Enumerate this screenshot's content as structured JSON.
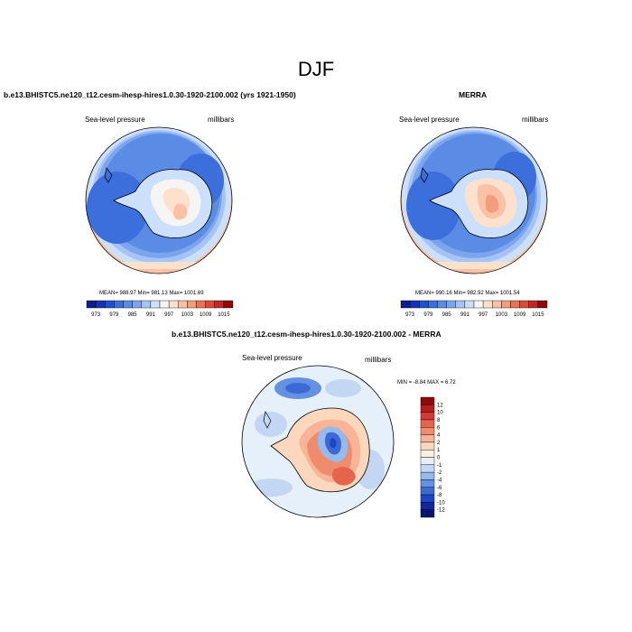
{
  "page_title": "DJF",
  "chart_data": [
    {
      "type": "heatmap",
      "title": "b.e13.BHISTC5.ne120_t12.cesm-ihesp-hires1.0.30-1920-2100.002 (yrs 1921-1950)",
      "left_label": "Sea-level pressure",
      "right_label": "millibars",
      "stats": "MEAN= 988.97   Min= 981.13   Max= 1001.69",
      "colorbar": {
        "orientation": "horizontal",
        "tick_labels": [
          "973",
          "979",
          "985",
          "991",
          "997",
          "1003",
          "1009",
          "1015"
        ],
        "colors": [
          "#0a1e8c",
          "#1432b4",
          "#1e50d2",
          "#3c6edc",
          "#5a8ce6",
          "#7da5ee",
          "#a5c3f5",
          "#cde0fb",
          "#f5f5f5",
          "#fde1cd",
          "#f9c1a5",
          "#f29d7c",
          "#e8735a",
          "#d94a3a",
          "#bf2828",
          "#8c0a0a"
        ],
        "unit": "millibars"
      }
    },
    {
      "type": "heatmap",
      "title": "MERRA",
      "left_label": "Sea-level pressure",
      "right_label": "millibars",
      "stats": "MEAN= 990.16   Min= 982.92   Max= 1001.54",
      "colorbar": {
        "orientation": "horizontal",
        "tick_labels": [
          "973",
          "979",
          "985",
          "991",
          "997",
          "1003",
          "1009",
          "1015"
        ],
        "colors": [
          "#0a1e8c",
          "#1432b4",
          "#1e50d2",
          "#3c6edc",
          "#5a8ce6",
          "#7da5ee",
          "#a5c3f5",
          "#cde0fb",
          "#f5f5f5",
          "#fde1cd",
          "#f9c1a5",
          "#f29d7c",
          "#e8735a",
          "#d94a3a",
          "#bf2828",
          "#8c0a0a"
        ],
        "unit": "millibars"
      }
    },
    {
      "type": "heatmap",
      "title": "b.e13.BHISTC5.ne120_t12.cesm-ihesp-hires1.0.30-1920-2100.002 - MERRA",
      "left_label": "Sea-level pressure",
      "right_label": "millibars",
      "stats": "MIN =  -8.84  MAX =   6.72",
      "colorbar": {
        "orientation": "vertical",
        "tick_labels": [
          "12",
          "10",
          "8",
          "6",
          "4",
          "2",
          "1",
          "0",
          "-1",
          "-2",
          "-4",
          "-6",
          "-8",
          "-10",
          "-12"
        ],
        "colors": [
          "#8c0a0a",
          "#b41e1e",
          "#d23c32",
          "#e6644b",
          "#f08c6e",
          "#f7b496",
          "#fbd7be",
          "#fdeee2",
          "#e6f0fb",
          "#c3d7f5",
          "#96b9ee",
          "#6491e1",
          "#3c6ad2",
          "#1e46c3",
          "#0f28a0",
          "#0a146e"
        ],
        "unit": "millibars"
      }
    }
  ]
}
